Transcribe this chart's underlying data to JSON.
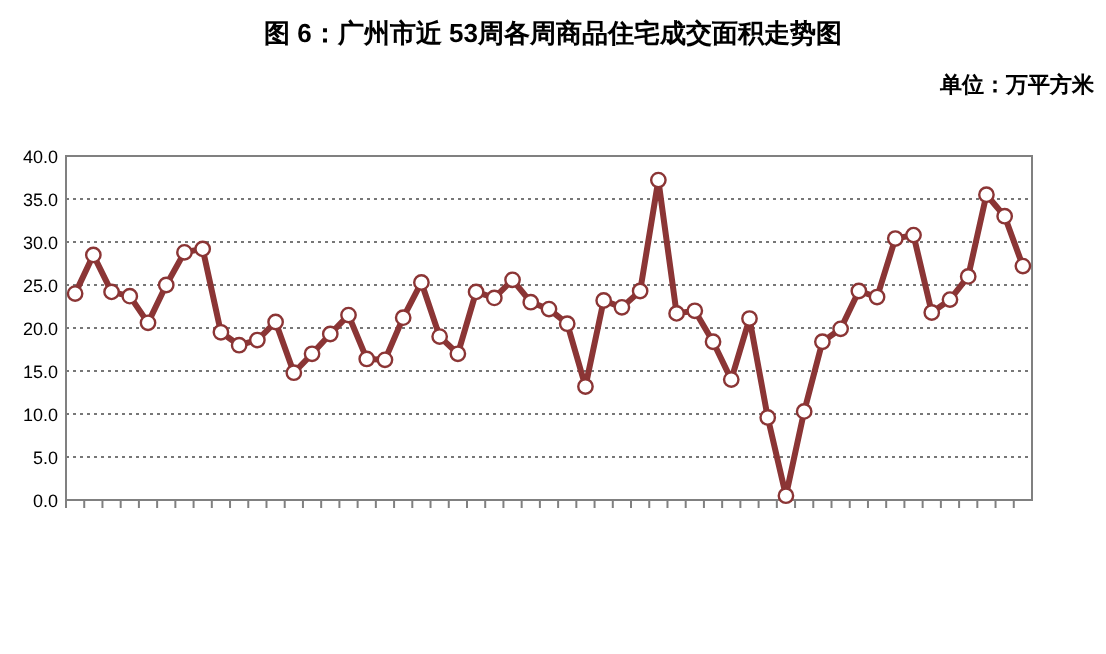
{
  "chart_data": {
    "type": "line",
    "title": "图 6：广州市近 53周各周商品住宅成交面积走势图",
    "annotations": [
      "单位：万平方米"
    ],
    "categories": [
      null,
      null,
      null,
      null,
      null,
      null,
      null,
      null,
      null,
      null,
      null,
      null,
      null,
      null,
      null,
      null,
      null,
      null,
      null,
      null,
      null,
      null,
      null,
      null,
      null,
      null,
      null,
      null,
      null,
      null,
      null,
      null,
      null,
      null,
      null,
      null,
      null,
      null,
      null,
      null,
      null,
      null,
      null,
      null,
      null,
      null,
      null,
      null,
      null,
      null,
      null,
      null,
      null
    ],
    "series": [
      {
        "color": "#8b3535",
        "values": [
          24.0,
          28.5,
          24.2,
          23.7,
          20.6,
          25.0,
          28.8,
          29.2,
          19.5,
          18.0,
          18.6,
          20.7,
          14.8,
          17.0,
          19.3,
          21.5,
          16.4,
          16.3,
          21.2,
          25.3,
          19.0,
          17.0,
          24.2,
          23.5,
          25.6,
          23.0,
          22.2,
          20.5,
          13.2,
          23.2,
          22.4,
          24.3,
          37.2,
          21.7,
          22.0,
          18.4,
          14.0,
          21.1,
          9.6,
          0.5,
          10.3,
          18.4,
          19.9,
          24.3,
          23.6,
          30.4,
          30.8,
          21.8,
          23.3,
          26.0,
          35.5,
          33.0,
          27.2
        ]
      }
    ],
    "ylim": [
      0,
      40
    ],
    "yticks": [
      {
        "value": 0,
        "label": "0.0"
      },
      {
        "value": 5,
        "label": "5.0"
      },
      {
        "value": 10,
        "label": "10.0"
      },
      {
        "value": 15,
        "label": "15.0"
      },
      {
        "value": 20,
        "label": "20.0"
      },
      {
        "value": 25,
        "label": "25.0"
      },
      {
        "value": 30,
        "label": "30.0"
      },
      {
        "value": 35,
        "label": "35.0"
      },
      {
        "value": 40,
        "label": "40.0"
      }
    ],
    "grid": "y",
    "marker": "circle"
  }
}
